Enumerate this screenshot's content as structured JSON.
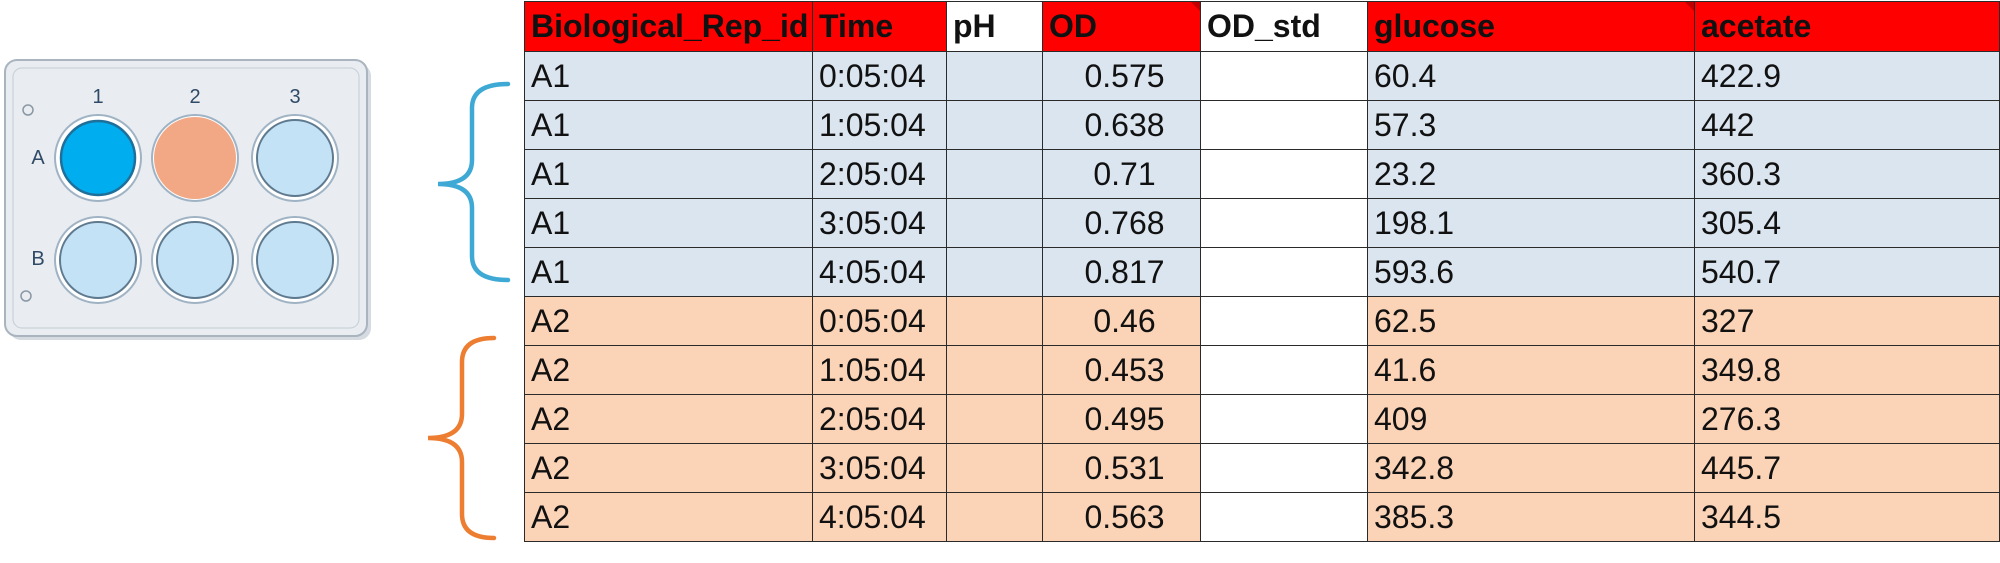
{
  "plate": {
    "column_labels": [
      "1",
      "2",
      "3"
    ],
    "row_labels": [
      "A",
      "B"
    ],
    "colors": {
      "frame": "#e9edf1",
      "frame_stroke": "#a9b4bf",
      "well_default": "#c4e2f5",
      "well_selected_blue": "#00aeef",
      "well_selected_orange": "#f2a884",
      "label_text": "#2f4a66"
    },
    "wells": [
      {
        "id": "A1",
        "state": "blue"
      },
      {
        "id": "A2",
        "state": "orange"
      },
      {
        "id": "A3",
        "state": "default"
      },
      {
        "id": "B1",
        "state": "default"
      },
      {
        "id": "B2",
        "state": "default"
      },
      {
        "id": "B3",
        "state": "default"
      }
    ]
  },
  "braces": {
    "group_a_color": "#3fa9d5",
    "group_b_color": "#ed7d31"
  },
  "table": {
    "headers": [
      "Biological_Rep_id",
      "Time",
      "pH",
      "OD",
      "OD_std",
      "glucose",
      "acetate"
    ],
    "header_colors": {
      "red": "#ff0000",
      "white": "#ffffff"
    },
    "row_colors": {
      "group_a": "#dbe5f0",
      "group_b": "#fbd4b8"
    },
    "rows": [
      {
        "rep": "A1",
        "time": "0:05:04",
        "ph": "",
        "od": "0.575",
        "od_std": "",
        "glucose": "60.4",
        "acetate": "422.9"
      },
      {
        "rep": "A1",
        "time": "1:05:04",
        "ph": "",
        "od": "0.638",
        "od_std": "",
        "glucose": "57.3",
        "acetate": "442"
      },
      {
        "rep": "A1",
        "time": "2:05:04",
        "ph": "",
        "od": "0.71",
        "od_std": "",
        "glucose": "23.2",
        "acetate": "360.3"
      },
      {
        "rep": "A1",
        "time": "3:05:04",
        "ph": "",
        "od": "0.768",
        "od_std": "",
        "glucose": "198.1",
        "acetate": "305.4"
      },
      {
        "rep": "A1",
        "time": "4:05:04",
        "ph": "",
        "od": "0.817",
        "od_std": "",
        "glucose": "593.6",
        "acetate": "540.7"
      },
      {
        "rep": "A2",
        "time": "0:05:04",
        "ph": "",
        "od": "0.46",
        "od_std": "",
        "glucose": "62.5",
        "acetate": "327"
      },
      {
        "rep": "A2",
        "time": "1:05:04",
        "ph": "",
        "od": "0.453",
        "od_std": "",
        "glucose": "41.6",
        "acetate": "349.8"
      },
      {
        "rep": "A2",
        "time": "2:05:04",
        "ph": "",
        "od": "0.495",
        "od_std": "",
        "glucose": "409",
        "acetate": "276.3"
      },
      {
        "rep": "A2",
        "time": "3:05:04",
        "ph": "",
        "od": "0.531",
        "od_std": "",
        "glucose": "342.8",
        "acetate": "445.7"
      },
      {
        "rep": "A2",
        "time": "4:05:04",
        "ph": "",
        "od": "0.563",
        "od_std": "",
        "glucose": "385.3",
        "acetate": "344.5"
      }
    ]
  }
}
